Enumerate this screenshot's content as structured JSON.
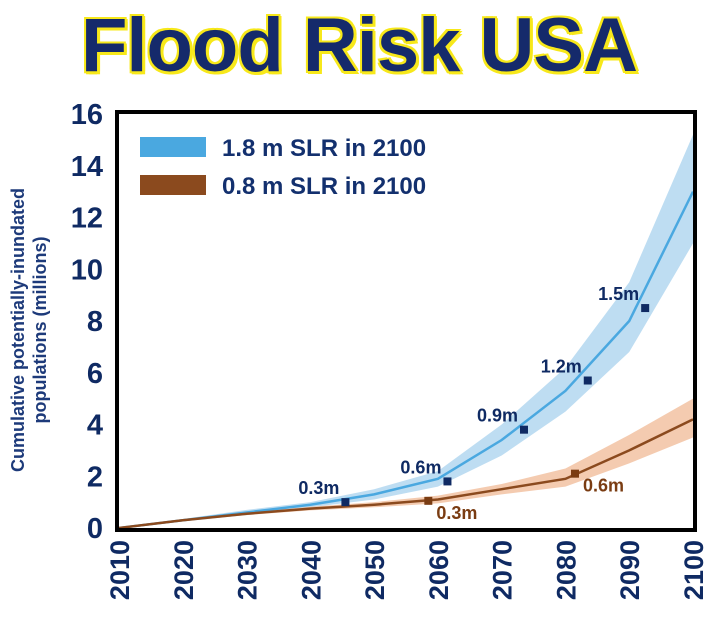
{
  "title": "Flood Risk USA",
  "chart_data": {
    "type": "area",
    "title": "Flood Risk USA",
    "xlabel": "",
    "ylabel_lines": [
      "Cumulative potentially-inundated",
      "populations (millions)"
    ],
    "xlim": [
      2010,
      2100
    ],
    "ylim": [
      0,
      16
    ],
    "x_ticks": [
      "2010",
      "2020",
      "2030",
      "2040",
      "2050",
      "2060",
      "2070",
      "2080",
      "2090",
      "2100"
    ],
    "y_ticks": [
      "0",
      "2",
      "4",
      "6",
      "8",
      "10",
      "12",
      "14",
      "16"
    ],
    "legend_position": "top-left",
    "series": [
      {
        "name": "1.8 m SLR in 2100",
        "color": "#4aa8e0",
        "band_color": "#b3d7f0",
        "x": [
          2010,
          2020,
          2030,
          2040,
          2050,
          2060,
          2070,
          2080,
          2090,
          2100
        ],
        "y": [
          0,
          0.3,
          0.6,
          0.9,
          1.3,
          1.9,
          3.4,
          5.3,
          8.0,
          13.0
        ],
        "y_low": [
          0,
          0.25,
          0.5,
          0.8,
          1.1,
          1.6,
          2.8,
          4.5,
          6.8,
          11.0
        ],
        "y_high": [
          0,
          0.35,
          0.7,
          1.0,
          1.5,
          2.2,
          4.0,
          6.2,
          9.5,
          15.2
        ],
        "markers": [
          {
            "x": 2045.5,
            "y": 1.0,
            "label": "0.3m"
          },
          {
            "x": 2061.5,
            "y": 1.8,
            "label": "0.6m"
          },
          {
            "x": 2073.5,
            "y": 3.8,
            "label": "0.9m"
          },
          {
            "x": 2083.5,
            "y": 5.7,
            "label": "1.2m"
          },
          {
            "x": 2092.5,
            "y": 8.5,
            "label": "1.5m"
          }
        ],
        "marker_color": "#0f2a63"
      },
      {
        "name": "0.8 m SLR in 2100",
        "color": "#8b4a1e",
        "band_color": "#f2c2a2",
        "x": [
          2010,
          2020,
          2030,
          2040,
          2050,
          2060,
          2070,
          2080,
          2090,
          2100
        ],
        "y": [
          0,
          0.3,
          0.55,
          0.75,
          0.9,
          1.1,
          1.5,
          1.9,
          3.0,
          4.2
        ],
        "y_low": [
          0,
          0.27,
          0.5,
          0.68,
          0.8,
          0.95,
          1.3,
          1.6,
          2.5,
          3.5
        ],
        "y_high": [
          0,
          0.33,
          0.6,
          0.82,
          1.0,
          1.25,
          1.7,
          2.3,
          3.6,
          5.0
        ],
        "markers": [
          {
            "x": 2058.5,
            "y": 1.05,
            "label": "0.3m"
          },
          {
            "x": 2081.5,
            "y": 2.1,
            "label": "0.6m"
          }
        ],
        "marker_color": "#7a3c12"
      }
    ]
  }
}
